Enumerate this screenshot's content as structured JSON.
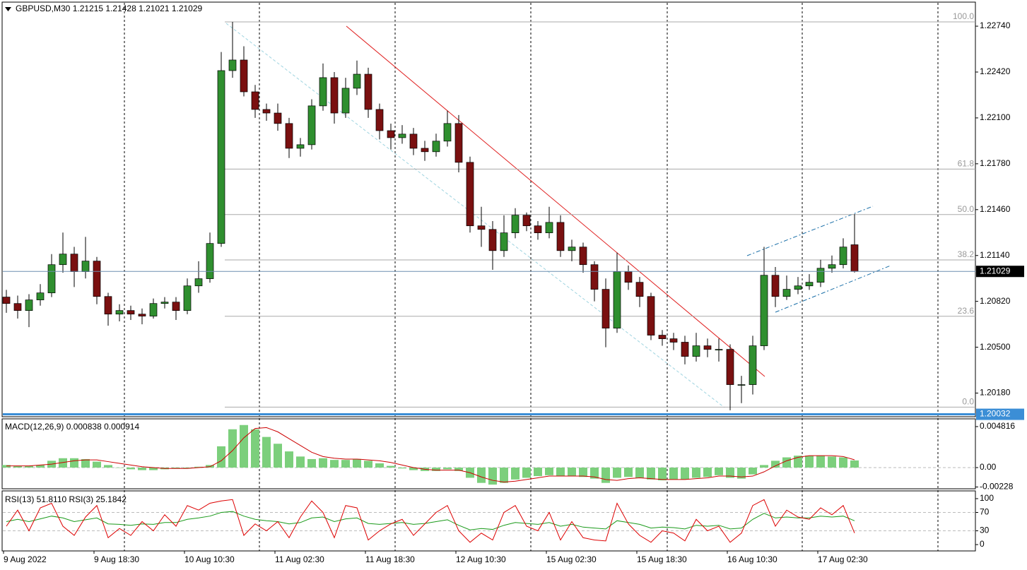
{
  "chart_data": [
    {
      "type": "candlestick",
      "title": "GBPUSD,M30  1.21215 1.21428 1.21021 1.21029",
      "categories": [
        "9 Aug 2022",
        null,
        null,
        null,
        null,
        null,
        null,
        null,
        "9 Aug 18:30",
        null,
        null,
        null,
        null,
        null,
        null,
        null,
        "10 Aug 10:30",
        null,
        null,
        null,
        null,
        null,
        null,
        null,
        "11 Aug 02:30",
        null,
        null,
        null,
        null,
        null,
        null,
        null,
        "11 Aug 18:30",
        null,
        null,
        null,
        null,
        null,
        null,
        null,
        "12 Aug 10:30",
        null,
        null,
        null,
        null,
        null,
        null,
        null,
        "15 Aug 02:30",
        null,
        null,
        null,
        null,
        null,
        null,
        null,
        "15 Aug 18:30",
        null,
        null,
        null,
        null,
        null,
        null,
        null,
        "16 Aug 10:30",
        null,
        null,
        null,
        null,
        null,
        null,
        null,
        "17 Aug 02:30",
        null,
        null,
        null
      ],
      "open": [
        1.2085,
        1.20805,
        1.20756,
        1.2083,
        1.20879,
        1.21076,
        1.2115,
        1.21027,
        1.21101,
        1.20854,
        1.20731,
        1.20756,
        1.20731,
        1.20717,
        1.20805,
        1.20815,
        1.20756,
        1.20928,
        1.20978,
        1.21224,
        1.2243,
        1.22504,
        1.22282,
        1.22159,
        1.22134,
        1.22061,
        1.21888,
        1.21913,
        1.22184,
        1.22381,
        1.22134,
        1.22307,
        1.22405,
        1.22159,
        1.22011,
        1.21962,
        1.21987,
        1.21888,
        1.21864,
        1.21938,
        1.22061,
        1.2179,
        1.21347,
        1.21322,
        1.21174,
        1.21298,
        1.21421,
        1.21347,
        1.21298,
        1.21371,
        1.21174,
        1.21199,
        1.21076,
        1.20904,
        1.20633,
        1.21027,
        1.20953,
        1.20854,
        1.20584,
        1.20559,
        1.20535,
        1.20436,
        1.2051,
        1.20485,
        1.20485,
        1.20239,
        1.20239,
        1.2051,
        1.21002,
        1.20854,
        1.20904,
        1.20928,
        1.20953,
        1.21051,
        1.21076,
        1.21215
      ],
      "high": [
        1.209,
        1.2086,
        1.2087,
        1.2094,
        1.2115,
        1.213,
        1.212,
        1.2127,
        1.2113,
        1.2088,
        1.208,
        1.2079,
        1.2077,
        1.2084,
        1.2085,
        1.2085,
        1.2098,
        1.211,
        1.213,
        1.2256,
        1.2277,
        1.226,
        1.2233,
        1.222,
        1.222,
        1.221,
        1.2196,
        1.2223,
        1.2248,
        1.2242,
        1.2238,
        1.225,
        1.2245,
        1.222,
        1.2206,
        1.2205,
        1.2203,
        1.2194,
        1.2199,
        1.2215,
        1.2212,
        1.2183,
        1.2148,
        1.2138,
        1.2142,
        1.2147,
        1.2144,
        1.2138,
        1.2148,
        1.2142,
        1.2125,
        1.2123,
        1.211,
        1.2098,
        1.2116,
        1.2107,
        1.2099,
        1.2088,
        1.2062,
        1.206,
        1.2058,
        1.206,
        1.2056,
        1.2056,
        1.2052,
        1.203,
        1.2058,
        1.212,
        1.2106,
        1.21,
        1.2099,
        1.2101,
        1.2111,
        1.2114,
        1.2126,
        1.21428
      ],
      "low": [
        1.2074,
        1.207,
        1.2064,
        1.2079,
        1.2085,
        1.2102,
        1.2092,
        1.2098,
        1.208,
        1.2065,
        1.2068,
        1.2069,
        1.2066,
        1.207,
        1.2077,
        1.2069,
        1.2073,
        1.2088,
        1.2095,
        1.212,
        1.2238,
        1.2225,
        1.221,
        1.2208,
        1.2201,
        1.2182,
        1.2183,
        1.2188,
        1.2215,
        1.2206,
        1.221,
        1.2226,
        1.221,
        1.2195,
        1.2188,
        1.2192,
        1.2184,
        1.218,
        1.2183,
        1.219,
        1.2172,
        1.213,
        1.212,
        1.2104,
        1.2113,
        1.2126,
        1.2131,
        1.2125,
        1.2126,
        1.2113,
        1.211,
        1.2102,
        1.2082,
        1.205,
        1.206,
        1.209,
        1.2078,
        1.2055,
        1.2051,
        1.2048,
        1.2038,
        1.204,
        1.2043,
        1.204,
        1.2006,
        1.2011,
        1.2017,
        1.2048,
        1.2078,
        1.2083,
        1.2087,
        1.209,
        1.2092,
        1.2102,
        1.2105,
        1.21021
      ],
      "close": [
        1.20805,
        1.20756,
        1.2083,
        1.20879,
        1.21076,
        1.2115,
        1.21027,
        1.21101,
        1.20854,
        1.20731,
        1.20756,
        1.20731,
        1.20717,
        1.20805,
        1.20815,
        1.20756,
        1.20928,
        1.20978,
        1.21224,
        1.2243,
        1.22504,
        1.22282,
        1.22159,
        1.22134,
        1.22061,
        1.21888,
        1.21913,
        1.22184,
        1.22381,
        1.22134,
        1.22307,
        1.22405,
        1.22159,
        1.22011,
        1.21962,
        1.21987,
        1.21888,
        1.21864,
        1.21938,
        1.22061,
        1.2179,
        1.21347,
        1.21322,
        1.21174,
        1.21298,
        1.21421,
        1.21347,
        1.21298,
        1.21371,
        1.21174,
        1.21199,
        1.21076,
        1.20904,
        1.20633,
        1.21027,
        1.20953,
        1.20854,
        1.20584,
        1.20559,
        1.20535,
        1.20436,
        1.2051,
        1.20485,
        1.20485,
        1.20239,
        1.20239,
        1.2051,
        1.21002,
        1.20854,
        1.20904,
        1.20928,
        1.20953,
        1.21051,
        1.21076,
        1.21199,
        1.21029
      ],
      "up_color": "#2f8f2f",
      "down_color": "#7a1010",
      "ylim": [
        1.20015,
        1.22898
      ],
      "yticks": [
        {
          "value": 1.2274,
          "label": "1.22740"
        },
        {
          "value": 1.2242,
          "label": "1.22420"
        },
        {
          "value": 1.221,
          "label": "1.22100"
        },
        {
          "value": 1.2178,
          "label": "1.21780"
        },
        {
          "value": 1.2146,
          "label": "1.21460"
        },
        {
          "value": 1.2114,
          "label": "1.21140"
        },
        {
          "value": 1.2082,
          "label": "1.20820"
        },
        {
          "value": 1.205,
          "label": "1.20500"
        },
        {
          "value": 1.2018,
          "label": "1.20180"
        }
      ],
      "current_price": 1.21029,
      "support_level": 1.20032,
      "fib_levels": [
        {
          "value": 1.2277,
          "label": "100.0"
        },
        {
          "value": 1.21743,
          "label": "61.8"
        },
        {
          "value": 1.21426,
          "label": "50.0"
        },
        {
          "value": 1.21109,
          "label": "38.2"
        },
        {
          "value": 1.20716,
          "label": "23.6"
        },
        {
          "value": 1.20082,
          "label": "0.0"
        }
      ]
    },
    {
      "type": "macd",
      "title": "MACD(12,26,9) 0.000838 0.000914",
      "histogram": {
        "color": "#7ccf7c",
        "values": [
          0.0003,
          0.0002,
          0.0002,
          0.0003,
          0.0008,
          0.0011,
          0.0011,
          0.001,
          0.0007,
          0.0003,
          0.0,
          -0.0002,
          -0.0003,
          -0.0003,
          -0.0002,
          -0.0001,
          -0.0001,
          0.0001,
          0.0003,
          0.0025,
          0.0045,
          0.005,
          0.0045,
          0.0036,
          0.0028,
          0.0019,
          0.0013,
          0.001,
          0.0011,
          0.0009,
          0.0009,
          0.001,
          0.0008,
          0.0005,
          0.0002,
          -0.0001,
          -0.0003,
          -0.0004,
          -0.0004,
          -0.0002,
          -0.0004,
          -0.0012,
          -0.0018,
          -0.002,
          -0.0018,
          -0.0014,
          -0.0012,
          -0.001,
          -0.0009,
          -0.001,
          -0.001,
          -0.0011,
          -0.0013,
          -0.0018,
          -0.0012,
          -0.0011,
          -0.0012,
          -0.0014,
          -0.0015,
          -0.0014,
          -0.0014,
          -0.0012,
          -0.0011,
          -0.0009,
          -0.0012,
          -0.0013,
          -0.0008,
          0.0003,
          0.0008,
          0.0012,
          0.0014,
          0.0014,
          0.0014,
          0.0013,
          0.0012,
          0.000838
        ]
      },
      "signal": {
        "color": "#cc0000",
        "values": [
          0.0002,
          0.0002,
          0.0002,
          0.0003,
          0.0004,
          0.0006,
          0.0008,
          0.0009,
          0.0009,
          0.0007,
          0.0005,
          0.0003,
          0.0001,
          0.0,
          -0.0001,
          -0.0001,
          -0.0001,
          0.0,
          0.0001,
          0.0008,
          0.002,
          0.0035,
          0.0046,
          0.0047,
          0.0042,
          0.0034,
          0.0026,
          0.0018,
          0.0013,
          0.0011,
          0.001,
          0.001,
          0.0009,
          0.0008,
          0.0006,
          0.0003,
          0.0,
          -0.0002,
          -0.0003,
          -0.0003,
          -0.0003,
          -0.0006,
          -0.0011,
          -0.0015,
          -0.0017,
          -0.0016,
          -0.0014,
          -0.0012,
          -0.001,
          -0.001,
          -0.001,
          -0.001,
          -0.0011,
          -0.0014,
          -0.0015,
          -0.0013,
          -0.0012,
          -0.0013,
          -0.0014,
          -0.0014,
          -0.0014,
          -0.0013,
          -0.0012,
          -0.001,
          -0.001,
          -0.0011,
          -0.001,
          -0.0005,
          0.0002,
          0.0008,
          0.0012,
          0.0014,
          0.0014,
          0.0014,
          0.0013,
          0.000914
        ]
      },
      "ylim": [
        -0.00249,
        0.00556
      ],
      "yticks": [
        0.004816,
        {
          "value": 0,
          "label": "0.00"
        },
        -0.00228
      ]
    },
    {
      "type": "line",
      "title": "RSI(13) 51.8110  RSI(3) 25.1842",
      "series": [
        {
          "color": "#1a9a1a",
          "values": [
            50,
            55,
            50,
            56,
            62,
            58,
            50,
            54,
            58,
            45,
            44,
            42,
            45,
            44,
            48,
            48,
            55,
            58,
            62,
            70,
            72,
            62,
            55,
            52,
            50,
            45,
            48,
            58,
            60,
            50,
            56,
            58,
            46,
            44,
            46,
            48,
            44,
            46,
            50,
            54,
            42,
            32,
            35,
            33,
            42,
            48,
            46,
            44,
            48,
            40,
            44,
            38,
            36,
            34,
            52,
            48,
            44,
            36,
            38,
            37,
            34,
            42,
            40,
            42,
            34,
            36,
            55,
            68,
            58,
            60,
            58,
            58,
            62,
            60,
            62,
            51.811
          ]
        },
        {
          "color": "#dd0000",
          "values": [
            40,
            75,
            30,
            80,
            90,
            40,
            20,
            60,
            85,
            15,
            35,
            20,
            50,
            30,
            65,
            40,
            85,
            75,
            90,
            95,
            98,
            20,
            45,
            30,
            50,
            15,
            60,
            95,
            70,
            15,
            85,
            80,
            10,
            30,
            45,
            55,
            20,
            45,
            70,
            85,
            30,
            5,
            25,
            10,
            70,
            85,
            40,
            30,
            70,
            10,
            50,
            15,
            10,
            8,
            90,
            45,
            20,
            5,
            30,
            25,
            8,
            55,
            30,
            40,
            5,
            25,
            85,
            98,
            40,
            75,
            60,
            55,
            80,
            65,
            85,
            25.1842
          ]
        }
      ],
      "ylim": [
        -13.8,
        113.8
      ],
      "yticks": [
        100,
        70,
        30,
        0
      ],
      "levels": [
        70,
        30
      ]
    }
  ]
}
